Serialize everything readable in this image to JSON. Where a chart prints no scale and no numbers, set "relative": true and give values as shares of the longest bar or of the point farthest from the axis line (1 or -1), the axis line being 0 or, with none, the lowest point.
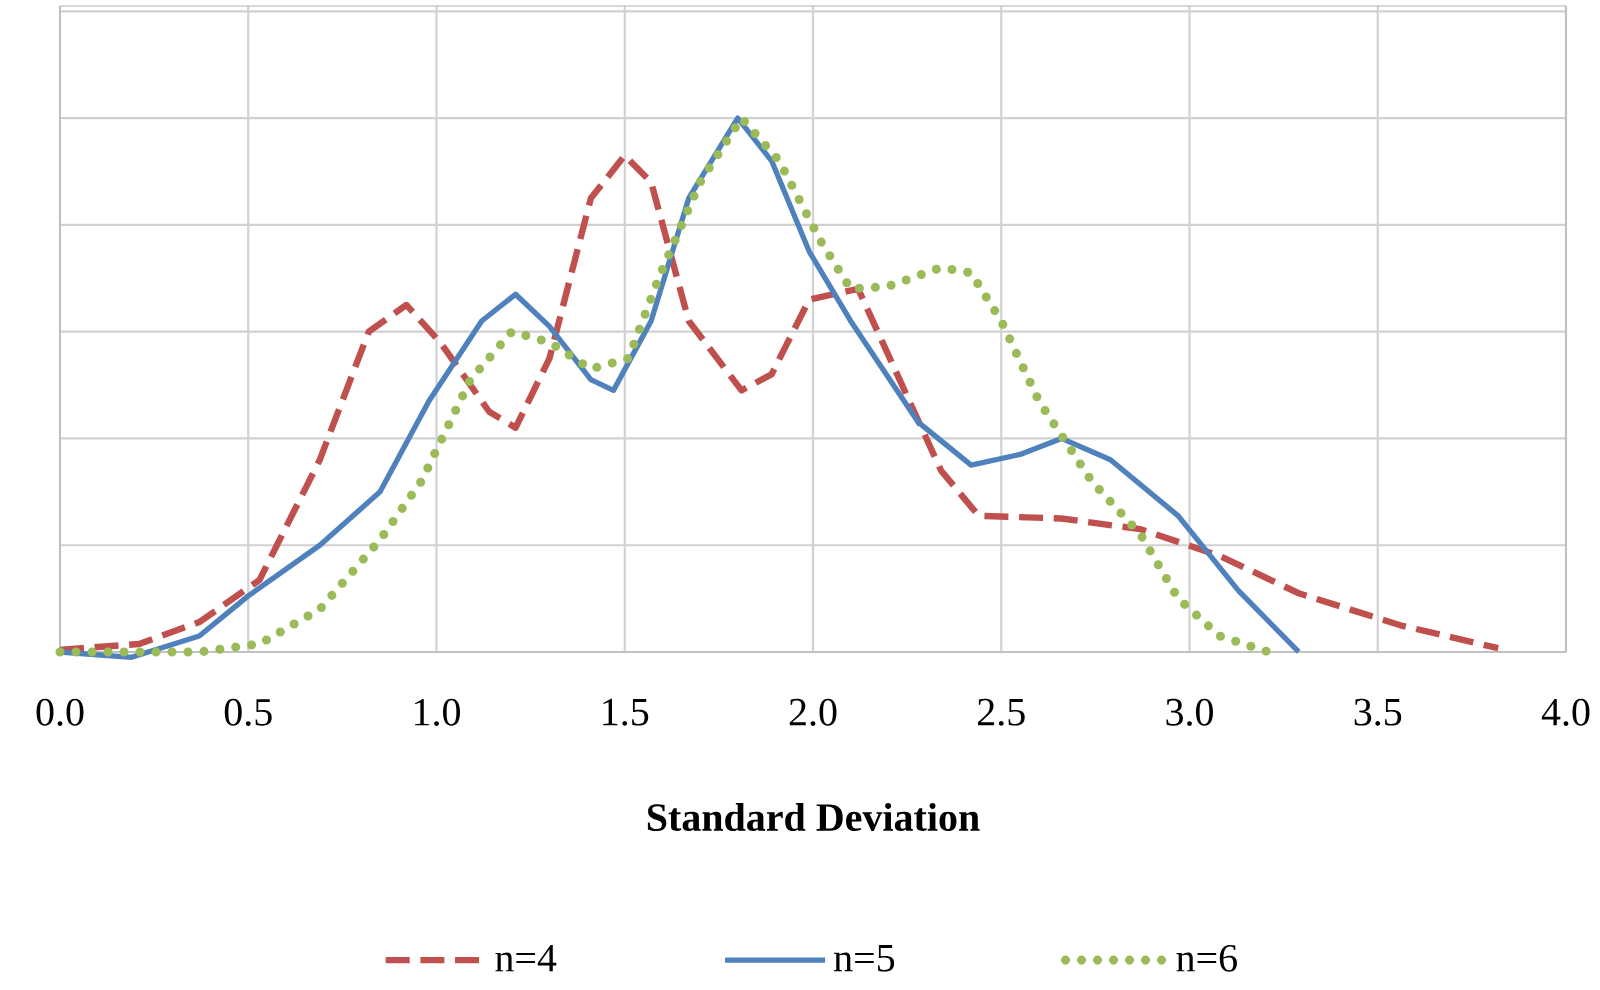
{
  "chart_data": {
    "type": "line",
    "xlabel": "Standard Deviation",
    "relative": true,
    "grid": true,
    "legend": "bottom",
    "xlim": [
      0,
      4
    ],
    "xticks": [
      {
        "value": 0,
        "label": "0.0"
      },
      {
        "value": 0.5,
        "label": "0.5"
      },
      {
        "value": 1,
        "label": "1.0"
      },
      {
        "value": 1.5,
        "label": "1.5"
      },
      {
        "value": 2,
        "label": "2.0"
      },
      {
        "value": 2.5,
        "label": "2.5"
      },
      {
        "value": 3,
        "label": "3.0"
      },
      {
        "value": 3.5,
        "label": "3.5"
      },
      {
        "value": 4,
        "label": "4.0"
      }
    ],
    "series": [
      {
        "name": "n=4",
        "color": "#c0504d",
        "line_style": "dashed",
        "x": [
          0,
          0.21,
          0.37,
          0.53,
          0.69,
          0.82,
          0.92,
          1.01,
          1.14,
          1.21,
          1.3,
          1.41,
          1.5,
          1.57,
          1.67,
          1.81,
          1.89,
          1.99,
          2.12,
          2.23,
          2.34,
          2.44,
          2.66,
          2.87,
          3.08,
          3.29,
          3.56,
          3.82
        ],
        "values": [
          0.004,
          0.015,
          0.056,
          0.135,
          0.36,
          0.6,
          0.65,
          0.58,
          0.45,
          0.42,
          0.55,
          0.85,
          0.93,
          0.88,
          0.62,
          0.49,
          0.52,
          0.66,
          0.68,
          0.51,
          0.34,
          0.255,
          0.25,
          0.23,
          0.18,
          0.11,
          0.05,
          0.007
        ]
      },
      {
        "name": "n=5",
        "color": "#4f81bd",
        "line_style": "solid",
        "x": [
          0,
          0.19,
          0.37,
          0.5,
          0.69,
          0.85,
          0.98,
          1.12,
          1.21,
          1.3,
          1.41,
          1.47,
          1.57,
          1.67,
          1.8,
          1.89,
          1.99,
          2.1,
          2.28,
          2.42,
          2.55,
          2.66,
          2.79,
          2.97,
          3.13,
          3.29
        ],
        "values": [
          0,
          -0.01,
          0.03,
          0.105,
          0.2,
          0.3,
          0.47,
          0.62,
          0.67,
          0.61,
          0.51,
          0.49,
          0.62,
          0.85,
          1,
          0.92,
          0.75,
          0.62,
          0.43,
          0.35,
          0.37,
          0.4,
          0.36,
          0.255,
          0.115,
          0
        ]
      },
      {
        "name": "n=6",
        "color": "#9bbb59",
        "line_style": "dotted",
        "x": [
          0,
          0.37,
          0.53,
          0.69,
          0.85,
          0.96,
          1.09,
          1.2,
          1.3,
          1.41,
          1.51,
          1.59,
          1.7,
          1.81,
          1.91,
          2.02,
          2.1,
          2.2,
          2.34,
          2.42,
          2.5,
          2.6,
          2.74,
          2.87,
          2.97,
          3.08,
          3.21
        ],
        "values": [
          0,
          0,
          0.015,
          0.08,
          0.21,
          0.32,
          0.51,
          0.6,
          0.58,
          0.53,
          0.55,
          0.7,
          0.88,
          1,
          0.92,
          0.77,
          0.68,
          0.685,
          0.72,
          0.71,
          0.62,
          0.47,
          0.32,
          0.22,
          0.1,
          0.03,
          0
        ]
      }
    ]
  }
}
